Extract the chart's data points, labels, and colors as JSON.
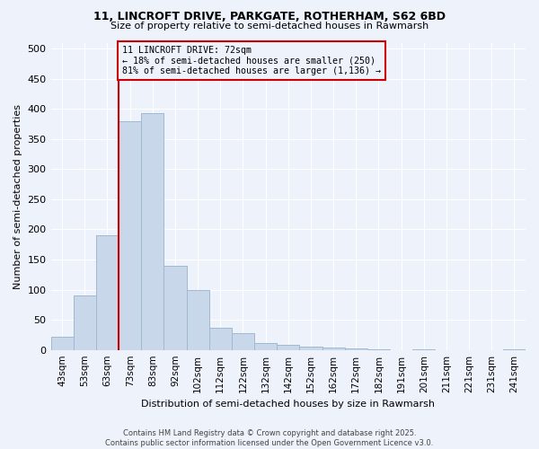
{
  "title1": "11, LINCROFT DRIVE, PARKGATE, ROTHERHAM, S62 6BD",
  "title2": "Size of property relative to semi-detached houses in Rawmarsh",
  "xlabel": "Distribution of semi-detached houses by size in Rawmarsh",
  "ylabel": "Number of semi-detached properties",
  "categories": [
    "43sqm",
    "53sqm",
    "63sqm",
    "73sqm",
    "83sqm",
    "92sqm",
    "102sqm",
    "112sqm",
    "122sqm",
    "132sqm",
    "142sqm",
    "152sqm",
    "162sqm",
    "172sqm",
    "182sqm",
    "191sqm",
    "201sqm",
    "211sqm",
    "221sqm",
    "231sqm",
    "241sqm"
  ],
  "values": [
    22,
    90,
    190,
    380,
    393,
    140,
    100,
    37,
    28,
    11,
    8,
    6,
    4,
    3,
    1,
    0,
    1,
    0,
    0,
    0,
    1
  ],
  "bar_color": "#c8d8ea",
  "bar_edge_color": "#a0b8d0",
  "vline_x": 2.5,
  "vline_color": "#cc0000",
  "annotation_text": "11 LINCROFT DRIVE: 72sqm\n← 18% of semi-detached houses are smaller (250)\n81% of semi-detached houses are larger (1,136) →",
  "box_color": "#cc0000",
  "footnote": "Contains HM Land Registry data © Crown copyright and database right 2025.\nContains public sector information licensed under the Open Government Licence v3.0.",
  "ylim": [
    0,
    510
  ],
  "yticks": [
    0,
    50,
    100,
    150,
    200,
    250,
    300,
    350,
    400,
    450,
    500
  ],
  "bg_color": "#eef2fb",
  "grid_color": "#ffffff"
}
